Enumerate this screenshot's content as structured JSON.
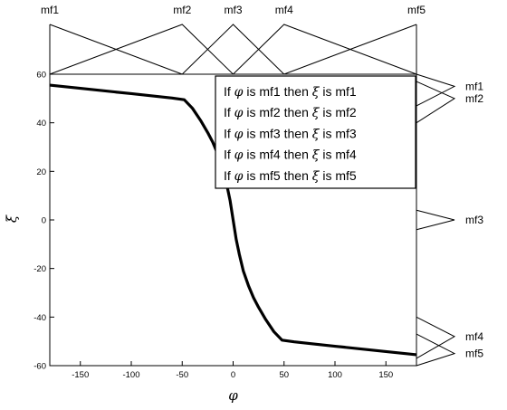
{
  "chart_data": {
    "type": "line",
    "xlabel": "φ",
    "ylabel": "ξ",
    "xlim": [
      -180,
      180
    ],
    "ylim": [
      -60,
      60
    ],
    "xticks": [
      -150,
      -100,
      -50,
      0,
      50,
      100,
      150
    ],
    "yticks": [
      -60,
      -40,
      -20,
      0,
      20,
      40,
      60
    ],
    "grid": false,
    "series": [
      {
        "x": [
          -180,
          -150,
          -100,
          -60,
          -48,
          -40,
          -32,
          -25,
          -20,
          -15,
          -10,
          -6,
          -3,
          0,
          3,
          6,
          10,
          15,
          20,
          25,
          32,
          40,
          48,
          60,
          100,
          150,
          180
        ],
        "y": [
          55.5,
          54.2,
          52,
          50.2,
          49.5,
          46,
          41,
          36,
          32,
          27,
          21,
          14,
          8,
          0,
          -8,
          -14,
          -21,
          -27,
          -32,
          -36,
          -41,
          -46,
          -49.5,
          -50.2,
          -52,
          -54.2,
          -55.5
        ]
      }
    ],
    "input_membership_functions": [
      {
        "label": "mf1",
        "points": [
          [
            -180,
            1
          ],
          [
            -50,
            0
          ]
        ]
      },
      {
        "label": "mf2",
        "points": [
          [
            -180,
            0
          ],
          [
            -50,
            1
          ],
          [
            0,
            0
          ]
        ]
      },
      {
        "label": "mf3",
        "points": [
          [
            -50,
            0
          ],
          [
            0,
            1
          ],
          [
            50,
            0
          ]
        ]
      },
      {
        "label": "mf4",
        "points": [
          [
            0,
            0
          ],
          [
            50,
            1
          ],
          [
            180,
            0
          ]
        ]
      },
      {
        "label": "mf5",
        "points": [
          [
            50,
            0
          ],
          [
            180,
            1
          ]
        ]
      }
    ],
    "output_membership_functions": [
      {
        "label": "mf1",
        "points": [
          [
            60,
            0
          ],
          [
            55,
            1
          ],
          [
            47,
            0
          ]
        ]
      },
      {
        "label": "mf2",
        "points": [
          [
            57,
            0
          ],
          [
            50,
            1
          ],
          [
            40,
            0
          ]
        ]
      },
      {
        "label": "mf3",
        "points": [
          [
            4,
            0
          ],
          [
            0,
            1
          ],
          [
            -4,
            0
          ]
        ]
      },
      {
        "label": "mf4",
        "points": [
          [
            -40,
            0
          ],
          [
            -48,
            1
          ],
          [
            -57,
            0
          ]
        ]
      },
      {
        "label": "mf5",
        "points": [
          [
            -47,
            0
          ],
          [
            -55,
            1
          ],
          [
            -60,
            0
          ]
        ]
      }
    ],
    "rules_legend": {
      "placement": "top-right",
      "rules": [
        {
          "pre": "If ",
          "in_var": "φ",
          "mid": " is mf1 then ",
          "out_var": "ξ",
          "post": " is mf1"
        },
        {
          "pre": "If ",
          "in_var": "φ",
          "mid": " is mf2 then ",
          "out_var": "ξ",
          "post": " is mf2"
        },
        {
          "pre": "If ",
          "in_var": "φ",
          "mid": " is mf3 then ",
          "out_var": "ξ",
          "post": " is mf3"
        },
        {
          "pre": "If ",
          "in_var": "φ",
          "mid": " is mf4 then ",
          "out_var": "ξ",
          "post": " is mf4"
        },
        {
          "pre": "If ",
          "in_var": "φ",
          "mid": " is mf5 then ",
          "out_var": "ξ",
          "post": " is mf5"
        }
      ]
    }
  }
}
